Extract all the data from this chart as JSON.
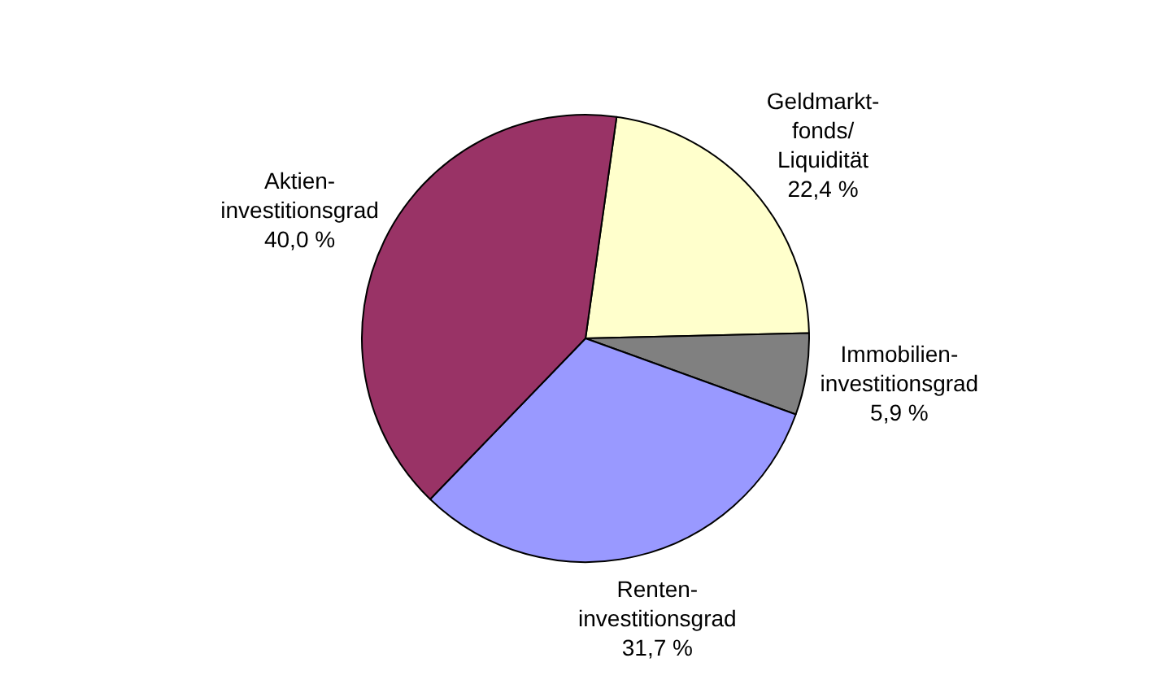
{
  "chart_data": {
    "type": "pie",
    "categories": [
      "Geldmarkt-fonds/Liquidität",
      "Immobilien-investitionsgrad",
      "Renten-investitionsgrad",
      "Aktien-investitionsgrad"
    ],
    "values": [
      22.4,
      5.9,
      31.7,
      40.0
    ],
    "value_labels": [
      "22,4 %",
      "5,9 %",
      "31,7 %",
      "40,0 %"
    ],
    "colors": [
      "#ffffcc",
      "#808080",
      "#9999ff",
      "#993366"
    ],
    "legend": false
  }
}
